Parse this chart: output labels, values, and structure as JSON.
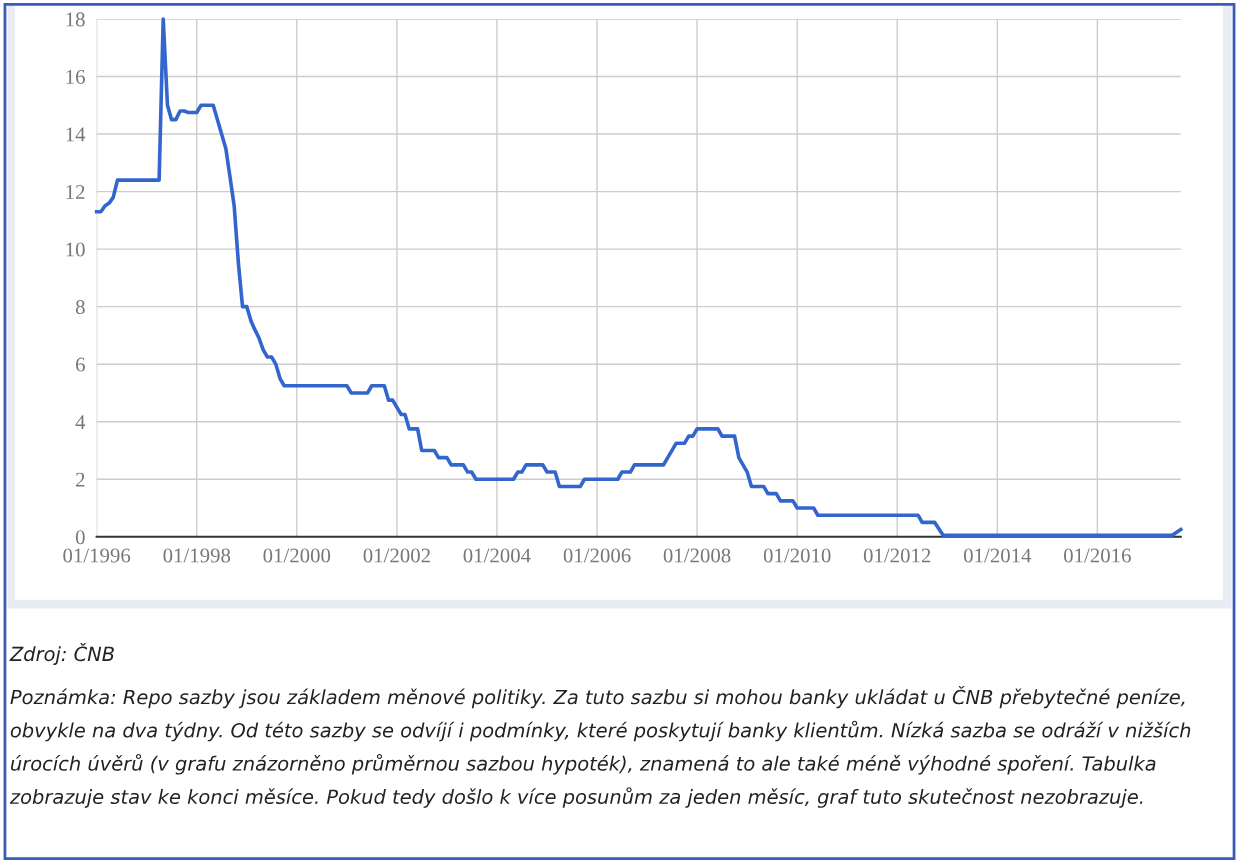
{
  "chart_data": {
    "type": "line",
    "x": [
      "1996-01",
      "1996-02",
      "1996-03",
      "1996-04",
      "1996-05",
      "1996-06",
      "1997-04",
      "1997-05",
      "1997-06",
      "1997-07",
      "1997-08",
      "1997-09",
      "1997-10",
      "1997-11",
      "1998-01",
      "1998-02",
      "1998-05",
      "1998-06",
      "1998-07",
      "1998-08",
      "1998-09",
      "1998-10",
      "1998-11",
      "1998-12",
      "1999-01",
      "1999-02",
      "1999-03",
      "1999-04",
      "1999-05",
      "1999-06",
      "1999-07",
      "1999-08",
      "1999-09",
      "1999-10",
      "2001-01",
      "2001-02",
      "2001-06",
      "2001-07",
      "2001-10",
      "2001-11",
      "2001-12",
      "2002-01",
      "2002-02",
      "2002-03",
      "2002-04",
      "2002-06",
      "2002-07",
      "2002-10",
      "2002-11",
      "2003-01",
      "2003-02",
      "2003-05",
      "2003-06",
      "2003-07",
      "2003-08",
      "2004-05",
      "2004-06",
      "2004-07",
      "2004-08",
      "2004-12",
      "2005-01",
      "2005-03",
      "2005-04",
      "2005-09",
      "2005-10",
      "2006-06",
      "2006-07",
      "2006-09",
      "2006-10",
      "2007-05",
      "2007-08",
      "2007-10",
      "2007-11",
      "2007-12",
      "2008-01",
      "2008-06",
      "2008-07",
      "2008-10",
      "2008-11",
      "2009-01",
      "2009-02",
      "2009-05",
      "2009-06",
      "2009-08",
      "2009-09",
      "2009-12",
      "2010-01",
      "2010-05",
      "2010-06",
      "2012-06",
      "2012-07",
      "2012-10",
      "2012-12",
      "2017-07",
      "2017-09"
    ],
    "series": [
      {
        "color": "#3366cc",
        "values": [
          11.3,
          11.3,
          11.5,
          11.6,
          11.8,
          12.4,
          12.4,
          18,
          15,
          14.5,
          14.5,
          14.8,
          14.8,
          14.75,
          14.75,
          15,
          15,
          14.5,
          14,
          13.5,
          12.5,
          11.5,
          9.5,
          8,
          8,
          7.5,
          7.2,
          6.9,
          6.5,
          6.25,
          6.25,
          6,
          5.5,
          5.25,
          5.25,
          5,
          5,
          5.25,
          5.25,
          4.75,
          4.75,
          4.5,
          4.25,
          4.25,
          3.75,
          3.75,
          3,
          3,
          2.75,
          2.75,
          2.5,
          2.5,
          2.25,
          2.25,
          2,
          2,
          2.25,
          2.25,
          2.5,
          2.5,
          2.25,
          2.25,
          1.75,
          1.75,
          2,
          2,
          2.25,
          2.25,
          2.5,
          2.5,
          3.25,
          3.25,
          3.5,
          3.5,
          3.75,
          3.75,
          3.5,
          3.5,
          2.75,
          2.25,
          1.75,
          1.75,
          1.5,
          1.5,
          1.25,
          1.25,
          1,
          1,
          0.75,
          0.75,
          0.5,
          0.5,
          0.05,
          0.05,
          0.25
        ]
      }
    ],
    "xlim": [
      "1996-01",
      "2017-09"
    ],
    "xticks": [
      {
        "value": "1996-01",
        "label": "01/1996"
      },
      {
        "value": "1998-01",
        "label": "01/1998"
      },
      {
        "value": "2000-01",
        "label": "01/2000"
      },
      {
        "value": "2002-01",
        "label": "01/2002"
      },
      {
        "value": "2004-01",
        "label": "01/2004"
      },
      {
        "value": "2006-01",
        "label": "01/2006"
      },
      {
        "value": "2008-01",
        "label": "01/2008"
      },
      {
        "value": "2010-01",
        "label": "01/2010"
      },
      {
        "value": "2012-01",
        "label": "01/2012"
      },
      {
        "value": "2014-01",
        "label": "01/2014"
      },
      {
        "value": "2016-01",
        "label": "01/2016"
      }
    ],
    "ylim": [
      0,
      18
    ],
    "yticks": [
      0,
      2,
      4,
      6,
      8,
      10,
      12,
      14,
      16,
      18
    ],
    "grid": true,
    "line_style": "solid",
    "annotations": [
      "Zdroj: ČNB",
      "Poznámka: Repo sazby jsou základem měnové politiky. Za tuto sazbu si mohou banky ukládat u ČNB přebytečné peníze, obvykle na dva týdny. Od této sazby se odvíjí i podmínky, které poskytují banky klientům. Nízká sazba se odráží v nižších úrocích úvěrů (v grafu znázorněno průměrnou sazbou hypoték), znamená to ale také méně výhodné spoření. Tabulka zobrazuje stav ke konci měsíce. Pokud tedy došlo k více posunům za jeden měsíc, graf tuto skutečnost nezobrazuje."
    ]
  }
}
